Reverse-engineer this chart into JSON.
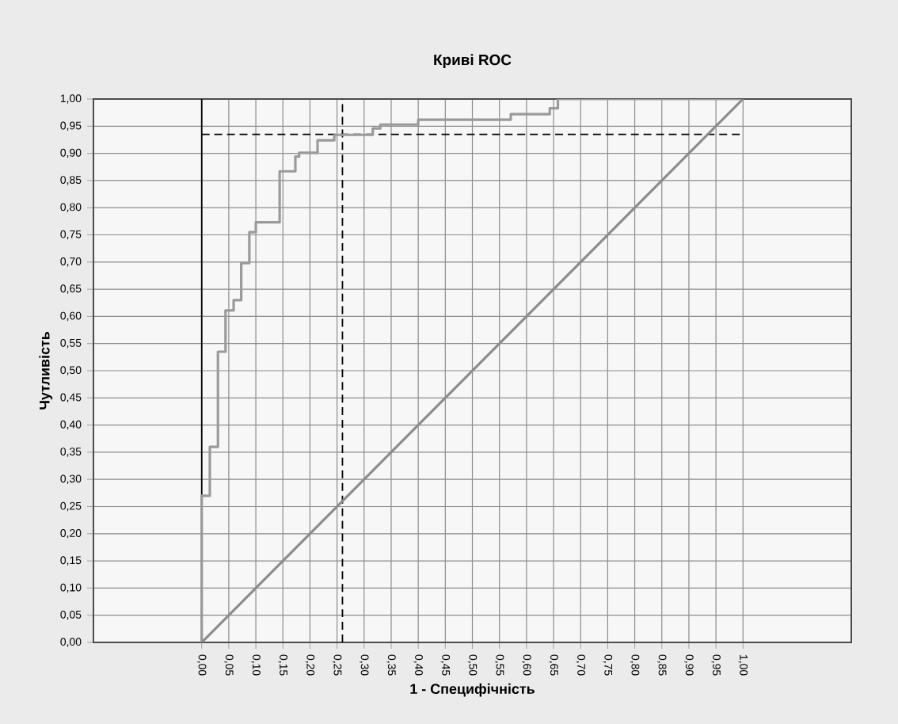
{
  "chart_data": {
    "type": "step",
    "title": "Криві ROC",
    "xlabel": "1 - Специфічність",
    "ylabel": "Чутливість",
    "series": [
      {
        "color": "#9a9a9a",
        "x": [
          0,
          0.015,
          0.03,
          0.044,
          0.059,
          0.073,
          0.088,
          0.1,
          0.144,
          0.173,
          0.18,
          0.214,
          0.245,
          0.316,
          0.33,
          0.4,
          0.571,
          0.643,
          0.658,
          1
        ],
        "values": [
          0,
          0.27,
          0.36,
          0.535,
          0.611,
          0.63,
          0.698,
          0.755,
          0.773,
          0.867,
          0.894,
          0.901,
          0.924,
          0.934,
          0.946,
          0.953,
          0.962,
          0.972,
          0.983,
          1
        ]
      },
      {
        "type": "line",
        "color": "#8c8c8c",
        "x": [
          0,
          1
        ],
        "values": [
          0,
          1
        ]
      }
    ],
    "ref_lines": [
      {
        "axis": "x",
        "value": 0,
        "color": "#000000",
        "line_style": "solid"
      },
      {
        "axis": "x",
        "value": 0.26,
        "color": "#000000",
        "line_style": "dashed"
      },
      {
        "axis": "y",
        "value": 0.935,
        "color": "#000000",
        "line_style": "dashed"
      }
    ],
    "xlim": [
      -0.2,
      1.2
    ],
    "ylim": [
      0,
      1
    ],
    "xticks": [
      {
        "value": 0,
        "label": "0,00"
      },
      {
        "value": 0.05,
        "label": "0,05"
      },
      {
        "value": 0.1,
        "label": "0,10"
      },
      {
        "value": 0.15,
        "label": "0,15"
      },
      {
        "value": 0.2,
        "label": "0,20"
      },
      {
        "value": 0.25,
        "label": "0,25"
      },
      {
        "value": 0.3,
        "label": "0,30"
      },
      {
        "value": 0.35,
        "label": "0,35"
      },
      {
        "value": 0.4,
        "label": "0,40"
      },
      {
        "value": 0.45,
        "label": "0,45"
      },
      {
        "value": 0.5,
        "label": "0,50"
      },
      {
        "value": 0.55,
        "label": "0,55"
      },
      {
        "value": 0.6,
        "label": "0,60"
      },
      {
        "value": 0.65,
        "label": "0,65"
      },
      {
        "value": 0.7,
        "label": "0,70"
      },
      {
        "value": 0.75,
        "label": "0,75"
      },
      {
        "value": 0.8,
        "label": "0,80"
      },
      {
        "value": 0.85,
        "label": "0,85"
      },
      {
        "value": 0.9,
        "label": "0,90"
      },
      {
        "value": 0.95,
        "label": "0,95"
      },
      {
        "value": 1,
        "label": "1,00"
      }
    ],
    "yticks": [
      {
        "value": 0,
        "label": "0,00"
      },
      {
        "value": 0.05,
        "label": "0,05"
      },
      {
        "value": 0.1,
        "label": "0,10"
      },
      {
        "value": 0.15,
        "label": "0,15"
      },
      {
        "value": 0.2,
        "label": "0,20"
      },
      {
        "value": 0.25,
        "label": "0,25"
      },
      {
        "value": 0.3,
        "label": "0,30"
      },
      {
        "value": 0.35,
        "label": "0,35"
      },
      {
        "value": 0.4,
        "label": "0,40"
      },
      {
        "value": 0.45,
        "label": "0,45"
      },
      {
        "value": 0.5,
        "label": "0,50"
      },
      {
        "value": 0.55,
        "label": "0,55"
      },
      {
        "value": 0.6,
        "label": "0,60"
      },
      {
        "value": 0.65,
        "label": "0,65"
      },
      {
        "value": 0.7,
        "label": "0,70"
      },
      {
        "value": 0.75,
        "label": "0,75"
      },
      {
        "value": 0.8,
        "label": "0,80"
      },
      {
        "value": 0.85,
        "label": "0,85"
      },
      {
        "value": 0.9,
        "label": "0,90"
      },
      {
        "value": 0.95,
        "label": "0,95"
      },
      {
        "value": 1,
        "label": "1,00"
      }
    ],
    "grid": true,
    "marker": "none"
  }
}
